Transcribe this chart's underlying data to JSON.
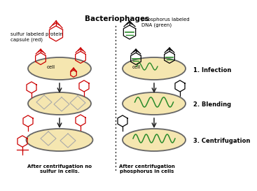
{
  "bg_color": "#ffffff",
  "title": "Bacteriophages",
  "cell_color": "#f5e6b0",
  "cell_edge": "#666666",
  "red_color": "#cc0000",
  "green_color": "#2a8a2a",
  "phage_body_gray": "#aaaaaa",
  "arrow_color": "#222222",
  "left_label": "sulfur labeled protein\ncapsule (red)",
  "right_label": "phosphorus labeled\nDNA (green)",
  "step1": "1. Infection",
  "step2": "2. Blending",
  "step3": "3. Centrifugation",
  "bottom_left": "After centrifugation no\nsulfur in cells.",
  "bottom_right": "After centrifugation\nphosphorus in cells"
}
